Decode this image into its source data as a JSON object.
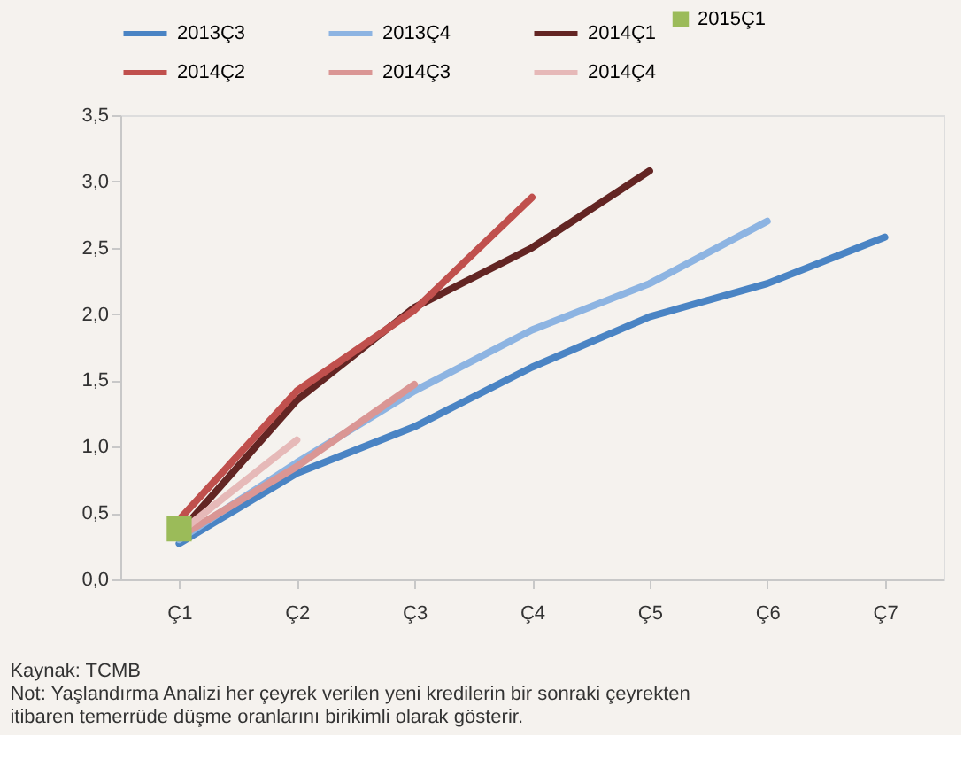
{
  "chart_data": {
    "type": "line",
    "categories": [
      "Ç1",
      "Ç2",
      "Ç3",
      "Ç4",
      "Ç5",
      "Ç6",
      "Ç7"
    ],
    "series": [
      {
        "name": "2013Ç3",
        "color": "#4a84c4",
        "values": [
          0.27,
          0.8,
          1.15,
          1.6,
          1.98,
          2.23,
          2.58
        ]
      },
      {
        "name": "2013Ç4",
        "color": "#8db4e2",
        "values": [
          0.3,
          0.88,
          1.42,
          1.88,
          2.23,
          2.7,
          null
        ]
      },
      {
        "name": "2014Ç1",
        "color": "#632523",
        "values": [
          0.35,
          1.35,
          2.05,
          2.5,
          3.08,
          null,
          null
        ]
      },
      {
        "name": "2014Ç2",
        "color": "#c0504d",
        "values": [
          0.45,
          1.42,
          2.03,
          2.88,
          null,
          null,
          null
        ]
      },
      {
        "name": "2014Ç3",
        "color": "#da9694",
        "values": [
          0.32,
          0.85,
          1.47,
          null,
          null,
          null,
          null
        ]
      },
      {
        "name": "2014Ç4",
        "color": "#e6b9b8",
        "values": [
          0.35,
          1.05,
          null,
          null,
          null,
          null,
          null
        ]
      },
      {
        "name": "2015Ç1",
        "color": "#9bbb59",
        "type": "scatter",
        "marker": "square",
        "values": [
          0.38,
          null,
          null,
          null,
          null,
          null,
          null
        ]
      }
    ],
    "ylim": [
      0,
      3.5
    ],
    "yticks": [
      {
        "value": 0,
        "label": "0,0"
      },
      {
        "value": 0.5,
        "label": "0,5"
      },
      {
        "value": 1,
        "label": "1,0"
      },
      {
        "value": 1.5,
        "label": "1,5"
      },
      {
        "value": 2,
        "label": "2,0"
      },
      {
        "value": 2.5,
        "label": "2,5"
      },
      {
        "value": 3,
        "label": "3,0"
      },
      {
        "value": 3.5,
        "label": "3,5"
      }
    ],
    "grid": false,
    "legend": "top",
    "annotations": [
      "Kaynak: TCMB",
      "Not: Yaşlandırma Analizi her çeyrek verilen yeni kredilerin bir sonraki çeyrekten itibaren temerrüde düşme oranlarını birikimli olarak gösterir."
    ]
  }
}
